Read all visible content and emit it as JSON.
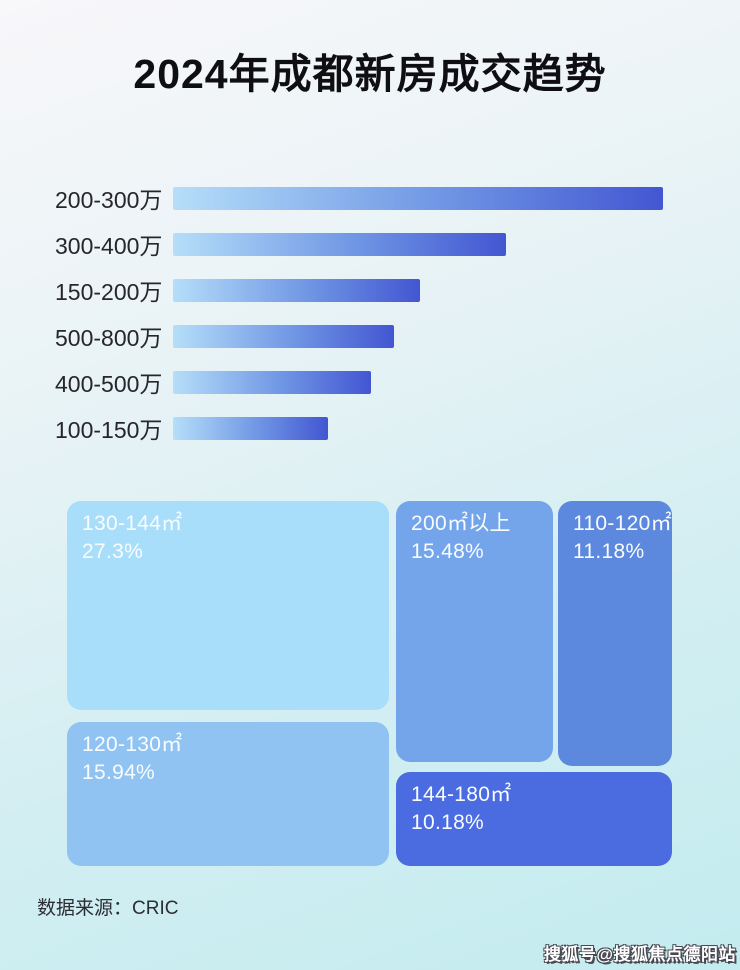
{
  "title": "2024年成都新房成交趋势",
  "source_label": "数据来源：CRIC",
  "watermark": "搜狐号@搜狐焦点德阳站",
  "colors": {
    "background_start": "#f8f7fa",
    "background_end": "#c3ecef",
    "bar_gradient_start": "#b5def9",
    "bar_gradient_end": "#4356d2",
    "title_color": "#0f0f13",
    "bar_label_color": "#26262b",
    "treemap_text_color": "#f8fcff"
  },
  "chart_data": [
    {
      "type": "bar",
      "orientation": "horizontal",
      "title": "2024年成都新房成交趋势",
      "categories": [
        "200-300万",
        "300-400万",
        "150-200万",
        "500-800万",
        "400-500万",
        "100-150万"
      ],
      "values": [
        100,
        68,
        50.5,
        45,
        40.5,
        31.6
      ],
      "value_note": "no numeric axis shown; values are bar lengths as % of longest bar",
      "xlabel": "",
      "ylabel": "",
      "legend": false,
      "grid": false,
      "bar_gradient": [
        "#b5def9",
        "#4356d2"
      ]
    },
    {
      "type": "treemap",
      "unit": "%",
      "items": [
        {
          "label": "130-144㎡",
          "value": 27.3,
          "color": "#a9defa"
        },
        {
          "label": "200㎡以上",
          "value": 15.48,
          "color": "#74a5eb"
        },
        {
          "label": "110-120㎡",
          "value": 11.18,
          "color": "#5c88dd"
        },
        {
          "label": "120-130㎡",
          "value": 15.94,
          "color": "#90c3f2"
        },
        {
          "label": "144-180㎡",
          "value": 10.18,
          "color": "#4a6ce0"
        }
      ]
    }
  ]
}
